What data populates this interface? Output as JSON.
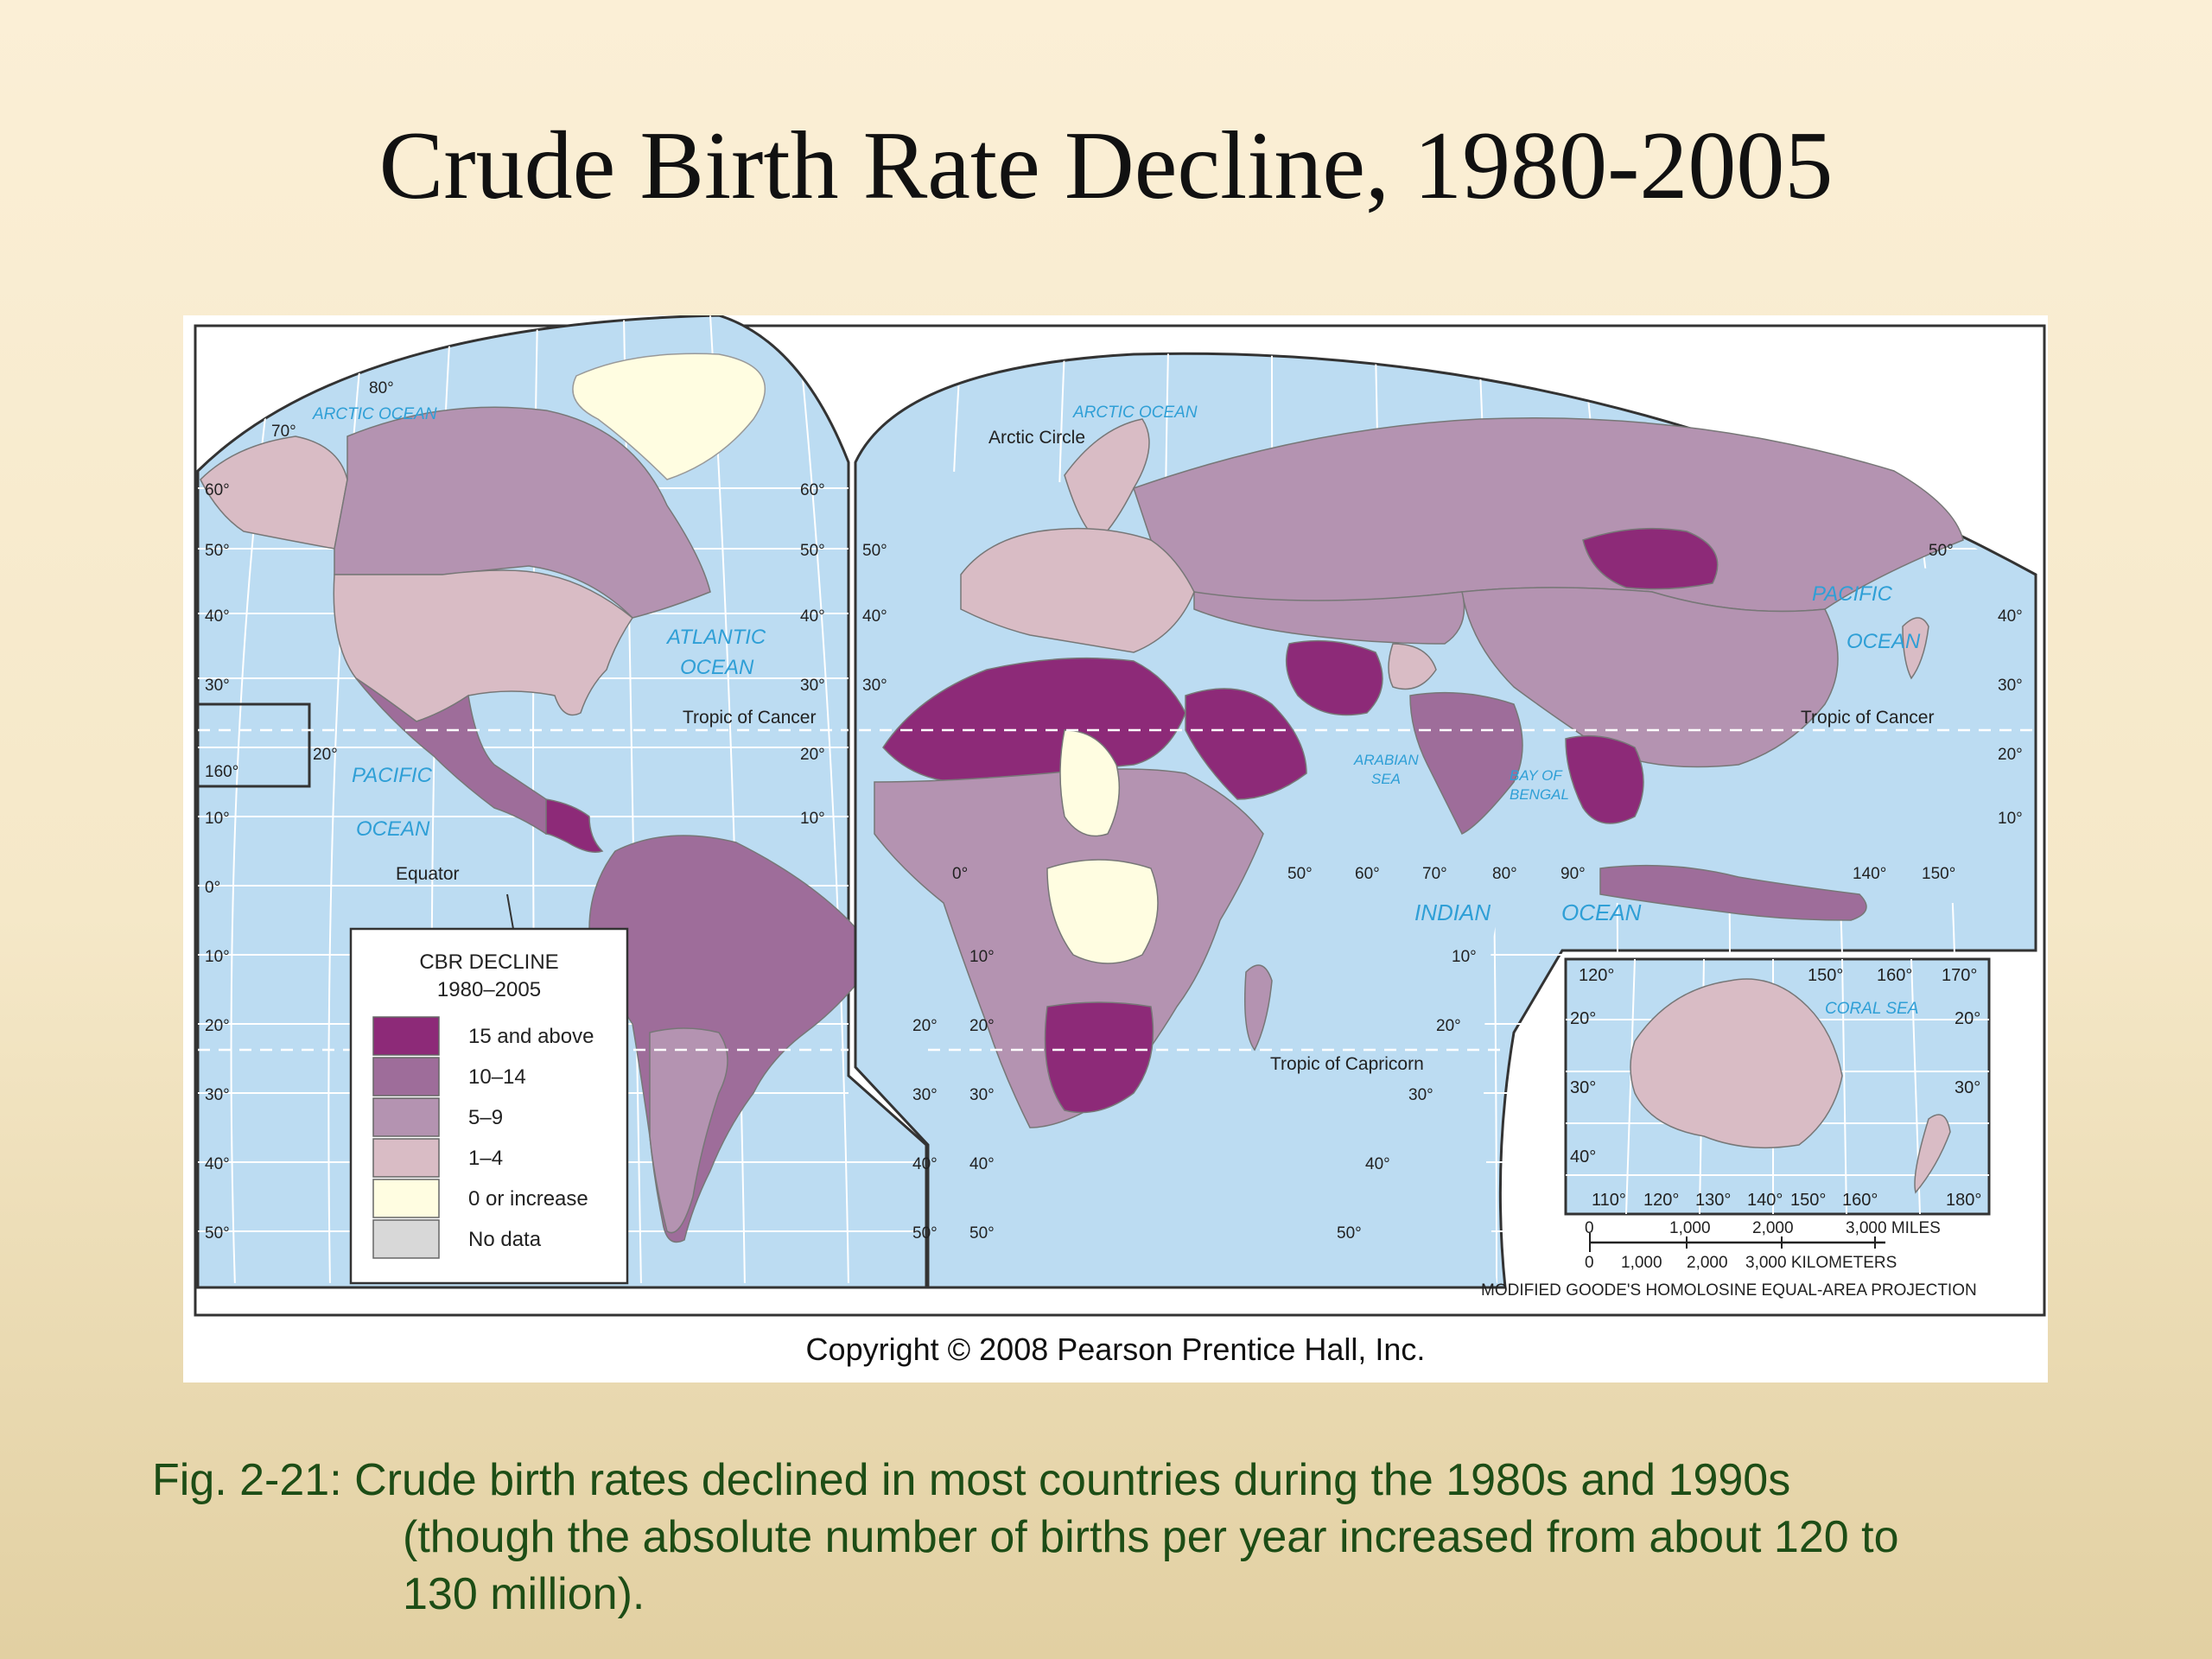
{
  "slide": {
    "title": "Crude Birth Rate Decline, 1980-2005",
    "caption_line1": "Fig. 2-21: Crude birth rates declined in most countries during the 1980s and 1990s",
    "caption_line2": "(though the absolute number of births per year increased from about 120 to",
    "caption_line3": "130 million)."
  },
  "map": {
    "copyright": "Copyright © 2008 Pearson Prentice Hall, Inc.",
    "projection": "MODIFIED GOODE'S HOMOLOSINE EQUAL-AREA PROJECTION",
    "ocean_labels": {
      "arctic_ocean_left": "ARCTIC OCEAN",
      "arctic_ocean_right": "ARCTIC OCEAN",
      "atlantic_1": "ATLANTIC",
      "atlantic_2": "OCEAN",
      "pacific_left_1": "PACIFIC",
      "pacific_left_2": "OCEAN",
      "pacific_right_1": "PACIFIC",
      "pacific_right_2": "OCEAN",
      "arabian_1": "ARABIAN",
      "arabian_2": "SEA",
      "bengal_1": "BAY OF",
      "bengal_2": "BENGAL",
      "indian_1": "INDIAN",
      "indian_2": "OCEAN",
      "coral_sea": "CORAL SEA"
    },
    "reference_lines": {
      "arctic_circle": "Arctic Circle",
      "tropic_cancer_left": "Tropic of Cancer",
      "tropic_cancer_right": "Tropic of Cancer",
      "equator": "Equator",
      "tropic_capricorn": "Tropic of Capricorn"
    },
    "legend": {
      "title_1": "CBR DECLINE",
      "title_2": "1980–2005",
      "items": [
        {
          "label": "15 and above",
          "color": "#8d2a78"
        },
        {
          "label": "10–14",
          "color": "#9e6d9a"
        },
        {
          "label": "5–9",
          "color": "#b493b1"
        },
        {
          "label": "1–4",
          "color": "#d9bcc5"
        },
        {
          "label": "0 or increase",
          "color": "#fffde1"
        },
        {
          "label": "No data",
          "color": "#d8d8d8"
        }
      ]
    },
    "scale": {
      "miles": [
        "0",
        "1,000",
        "2,000",
        "3,000 MILES"
      ],
      "km": [
        "0",
        "1,000",
        "2,000",
        "3,000 KILOMETERS"
      ]
    },
    "graticule_labels": {
      "left_lat": [
        "60°",
        "50°",
        "40°",
        "30°",
        "20°",
        "10°",
        "0°",
        "10°",
        "20°",
        "30°",
        "40°",
        "50°"
      ],
      "mid_lat_a": [
        "60°",
        "50°",
        "40°",
        "30°",
        "20°",
        "10°"
      ],
      "mid_lat_b": [
        "20°",
        "30°",
        "40°",
        "50°"
      ],
      "africa_lat_a": [
        "50°",
        "40°",
        "30°"
      ],
      "africa_lat_b": [
        "10°",
        "20°",
        "30°",
        "40°",
        "50°"
      ],
      "indian_lat": [
        "10°",
        "20°",
        "30°",
        "40°",
        "50°"
      ],
      "right_lat": [
        "50°",
        "40°",
        "30°",
        "20°",
        "10°"
      ],
      "lon_row": [
        "0°",
        "50°",
        "60°",
        "70°",
        "80°",
        "90°",
        "140°",
        "150°"
      ],
      "left_top": [
        "80°",
        "70°"
      ],
      "left_misc": [
        "20°",
        "160°"
      ],
      "aus_top": [
        "120°",
        "150°",
        "160°",
        "170°"
      ],
      "aus_bottom": [
        "110°",
        "120°",
        "130°",
        "140°",
        "150°",
        "160°",
        "180°"
      ],
      "aus_left": [
        "20°",
        "30°",
        "40°"
      ],
      "aus_right": [
        "20°",
        "30°"
      ]
    },
    "colors": {
      "ocean": "#bcdcf2",
      "grid": "#ffffff",
      "frame": "#333333",
      "ocean_label": "#2f9fd6",
      "greenland": "#fffde1"
    }
  }
}
